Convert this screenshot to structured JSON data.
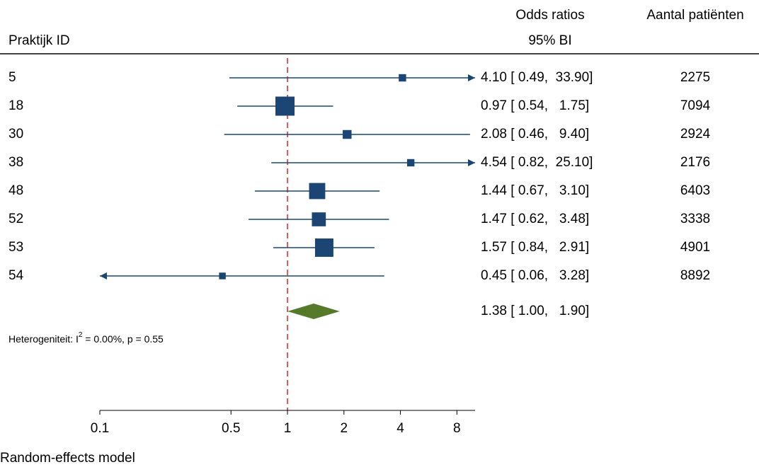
{
  "chart_data": {
    "type": "forest",
    "row_header": "Praktijk ID",
    "value_header": "Odds ratios",
    "value_subheader": "95% BI",
    "count_header": "Aantal patiënten",
    "categories": [
      "5",
      "18",
      "30",
      "38",
      "48",
      "52",
      "53",
      "54"
    ],
    "values": [
      4.1,
      0.97,
      2.08,
      4.54,
      1.44,
      1.47,
      1.57,
      0.45
    ],
    "lower": [
      0.49,
      0.54,
      0.46,
      0.82,
      0.67,
      0.62,
      0.84,
      0.06
    ],
    "upper": [
      33.9,
      1.75,
      9.4,
      25.1,
      3.1,
      3.48,
      2.91,
      3.28
    ],
    "value_labels": [
      "4.10 [ 0.49,  33.90]",
      "0.97 [ 0.54,   1.75]",
      "2.08 [ 0.46,   9.40]",
      "4.54 [ 0.82,  25.10]",
      "1.44 [ 0.67,   3.10]",
      "1.47 [ 0.62,   3.48]",
      "1.57 [ 0.84,   2.91]",
      "0.45 [ 0.06,   3.28]"
    ],
    "weights": [
      3.9,
      26.3,
      5.6,
      3.9,
      18.8,
      14.0,
      24.3,
      3.2
    ],
    "patients": [
      2275,
      7094,
      2924,
      2176,
      6403,
      3338,
      4901,
      8892
    ],
    "color": "#1b4674",
    "pooled": {
      "value": 1.38,
      "lower": 1.0,
      "upper": 1.9,
      "value_label": "1.38 [ 1.00,   1.90]",
      "color": "#557a2a"
    },
    "heterogeneity": {
      "prefix": "Heterogeniteit: I",
      "sup": "2",
      "suffix": " = 0.00%, p = 0.55"
    },
    "model": "Random-effects model",
    "reference": 1,
    "reference_color": "#d62728",
    "xscale": "log",
    "xlim": [
      0.1,
      10
    ],
    "xticks": [
      0.1,
      0.5,
      1,
      2,
      4,
      8
    ]
  }
}
